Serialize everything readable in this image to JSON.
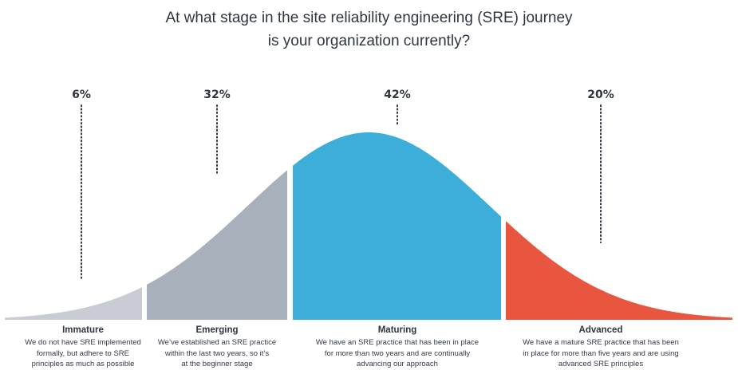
{
  "title_line1": "At what stage in the site reliability engineering (SRE) journey",
  "title_line2": "is your organization currently?",
  "colors": {
    "immature": "#c9ccd4",
    "emerging": "#a8b0bc",
    "maturing": "#3caed9",
    "advanced": "#e8563f",
    "text": "#2f3541"
  },
  "chart_data": {
    "type": "area",
    "title": "At what stage in the site reliability engineering (SRE) journey is your organization currently?",
    "categories": [
      "Immature",
      "Emerging",
      "Maturing",
      "Advanced"
    ],
    "values": [
      6,
      32,
      42,
      20
    ],
    "value_labels": [
      "6%",
      "32%",
      "42%",
      "20%"
    ],
    "unit": "%",
    "descriptions": [
      "We do not have SRE implemented formally, but adhere to SRE principles as much as possible",
      "We’ve established an SRE practice within the last two years, so it’s at the beginner stage",
      "We have an SRE practice that has been in place for more than two years and are continually advancing our approach",
      "We have a mature SRE practice that has been in place for more than five years and are using advanced SRE principles"
    ]
  },
  "stages": [
    {
      "name": "Immature",
      "pct": "6%",
      "desc_lines": [
        "We do not have SRE implemented",
        "formally, but adhere to SRE",
        "principles as much as possible"
      ]
    },
    {
      "name": "Emerging",
      "pct": "32%",
      "desc_lines": [
        "We’ve established an SRE practice",
        "within the last two years, so it’s",
        "at the beginner stage"
      ]
    },
    {
      "name": "Maturing",
      "pct": "42%",
      "desc_lines": [
        "We have an SRE practice that has been in place",
        "for more than two years and are continually",
        "advancing our approach"
      ]
    },
    {
      "name": "Advanced",
      "pct": "20%",
      "desc_lines": [
        "We have a mature SRE practice that has been",
        "in place for more than five years and are using",
        "advanced SRE principles"
      ]
    }
  ]
}
